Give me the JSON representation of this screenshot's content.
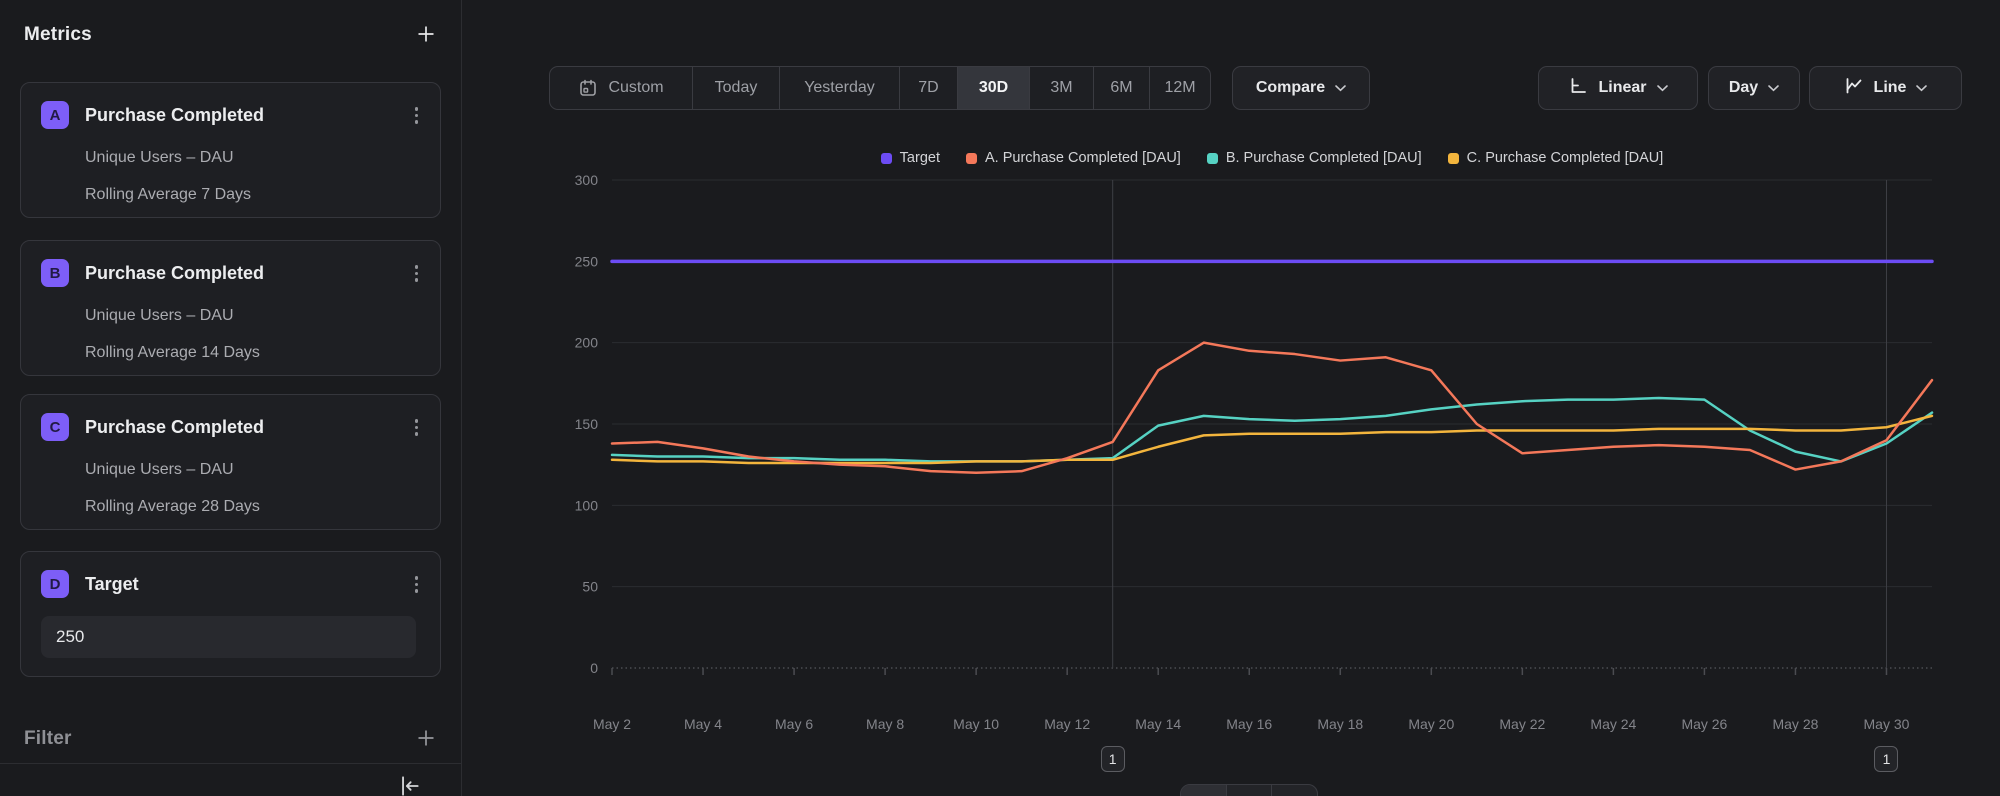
{
  "sidebar": {
    "metrics_header": {
      "title": "Metrics"
    },
    "metric_cards": [
      {
        "badge": "A",
        "title": "Purchase Completed",
        "line1": "Unique Users – DAU",
        "line2": "Rolling Average 7 Days"
      },
      {
        "badge": "B",
        "title": "Purchase Completed",
        "line1": "Unique Users – DAU",
        "line2": "Rolling Average 14 Days"
      },
      {
        "badge": "C",
        "title": "Purchase Completed",
        "line1": "Unique Users – DAU",
        "line2": "Rolling Average 28 Days"
      }
    ],
    "target_card": {
      "badge": "D",
      "title": "Target",
      "value": "250"
    },
    "filter_header": {
      "title": "Filter"
    }
  },
  "toolbar": {
    "date_ranges": [
      {
        "label": "Custom",
        "icon": "calendar-icon",
        "selected": false
      },
      {
        "label": "Today",
        "selected": false
      },
      {
        "label": "Yesterday",
        "selected": false
      },
      {
        "label": "7D",
        "selected": false
      },
      {
        "label": "30D",
        "selected": true
      },
      {
        "label": "3M",
        "selected": false
      },
      {
        "label": "6M",
        "selected": false
      },
      {
        "label": "12M",
        "selected": false
      }
    ],
    "compare_label": "Compare",
    "scale_label": "Linear",
    "granularity_label": "Day",
    "chart_type_label": "Line"
  },
  "annotations": [
    {
      "label": "1",
      "x_label": "May 13"
    },
    {
      "label": "1",
      "x_label": "May 30"
    }
  ],
  "chart_data": {
    "type": "line",
    "x": [
      "May 2",
      "May 3",
      "May 4",
      "May 5",
      "May 6",
      "May 7",
      "May 8",
      "May 9",
      "May 10",
      "May 11",
      "May 12",
      "May 13",
      "May 14",
      "May 15",
      "May 16",
      "May 17",
      "May 18",
      "May 19",
      "May 20",
      "May 21",
      "May 22",
      "May 23",
      "May 24",
      "May 25",
      "May 26",
      "May 27",
      "May 28",
      "May 29",
      "May 30",
      "May 31"
    ],
    "x_tick_labels": [
      "May 2",
      "May 4",
      "May 6",
      "May 8",
      "May 10",
      "May 12",
      "May 14",
      "May 16",
      "May 18",
      "May 20",
      "May 22",
      "May 24",
      "May 26",
      "May 28",
      "May 30"
    ],
    "ylim": [
      0,
      300
    ],
    "yticks": [
      0,
      50,
      100,
      150,
      200,
      250,
      300
    ],
    "grid": "horizontal",
    "legend_position": "top",
    "series": [
      {
        "name": "Target",
        "color": "#6C4CF4",
        "values": [
          250,
          250,
          250,
          250,
          250,
          250,
          250,
          250,
          250,
          250,
          250,
          250,
          250,
          250,
          250,
          250,
          250,
          250,
          250,
          250,
          250,
          250,
          250,
          250,
          250,
          250,
          250,
          250,
          250,
          250
        ]
      },
      {
        "name": "A. Purchase Completed [DAU]",
        "color": "#F4785A",
        "values": [
          138,
          139,
          135,
          130,
          127,
          125,
          124,
          121,
          120,
          121,
          129,
          139,
          183,
          200,
          195,
          193,
          189,
          191,
          183,
          150,
          132,
          134,
          136,
          137,
          136,
          134,
          122,
          127,
          140,
          177
        ]
      },
      {
        "name": "B. Purchase Completed [DAU]",
        "color": "#56D2C3",
        "values": [
          131,
          130,
          130,
          129,
          129,
          128,
          128,
          127,
          127,
          127,
          128,
          129,
          149,
          155,
          153,
          152,
          153,
          155,
          159,
          162,
          164,
          165,
          165,
          166,
          165,
          146,
          133,
          127,
          138,
          157
        ]
      },
      {
        "name": "C. Purchase Completed [DAU]",
        "color": "#F3B53D",
        "values": [
          128,
          127,
          127,
          126,
          126,
          126,
          126,
          126,
          127,
          127,
          128,
          128,
          136,
          143,
          144,
          144,
          144,
          145,
          145,
          146,
          146,
          146,
          146,
          147,
          147,
          147,
          146,
          146,
          148,
          155
        ]
      }
    ]
  }
}
